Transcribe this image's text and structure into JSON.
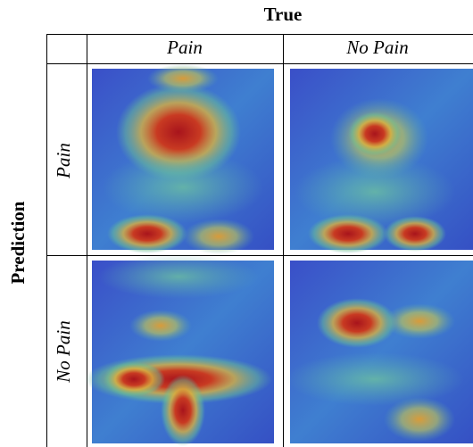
{
  "header": {
    "title": "True",
    "columns": [
      "Pain",
      "No Pain"
    ]
  },
  "side": {
    "title": "Prediction",
    "rows": [
      "Pain",
      "No Pain"
    ]
  }
}
